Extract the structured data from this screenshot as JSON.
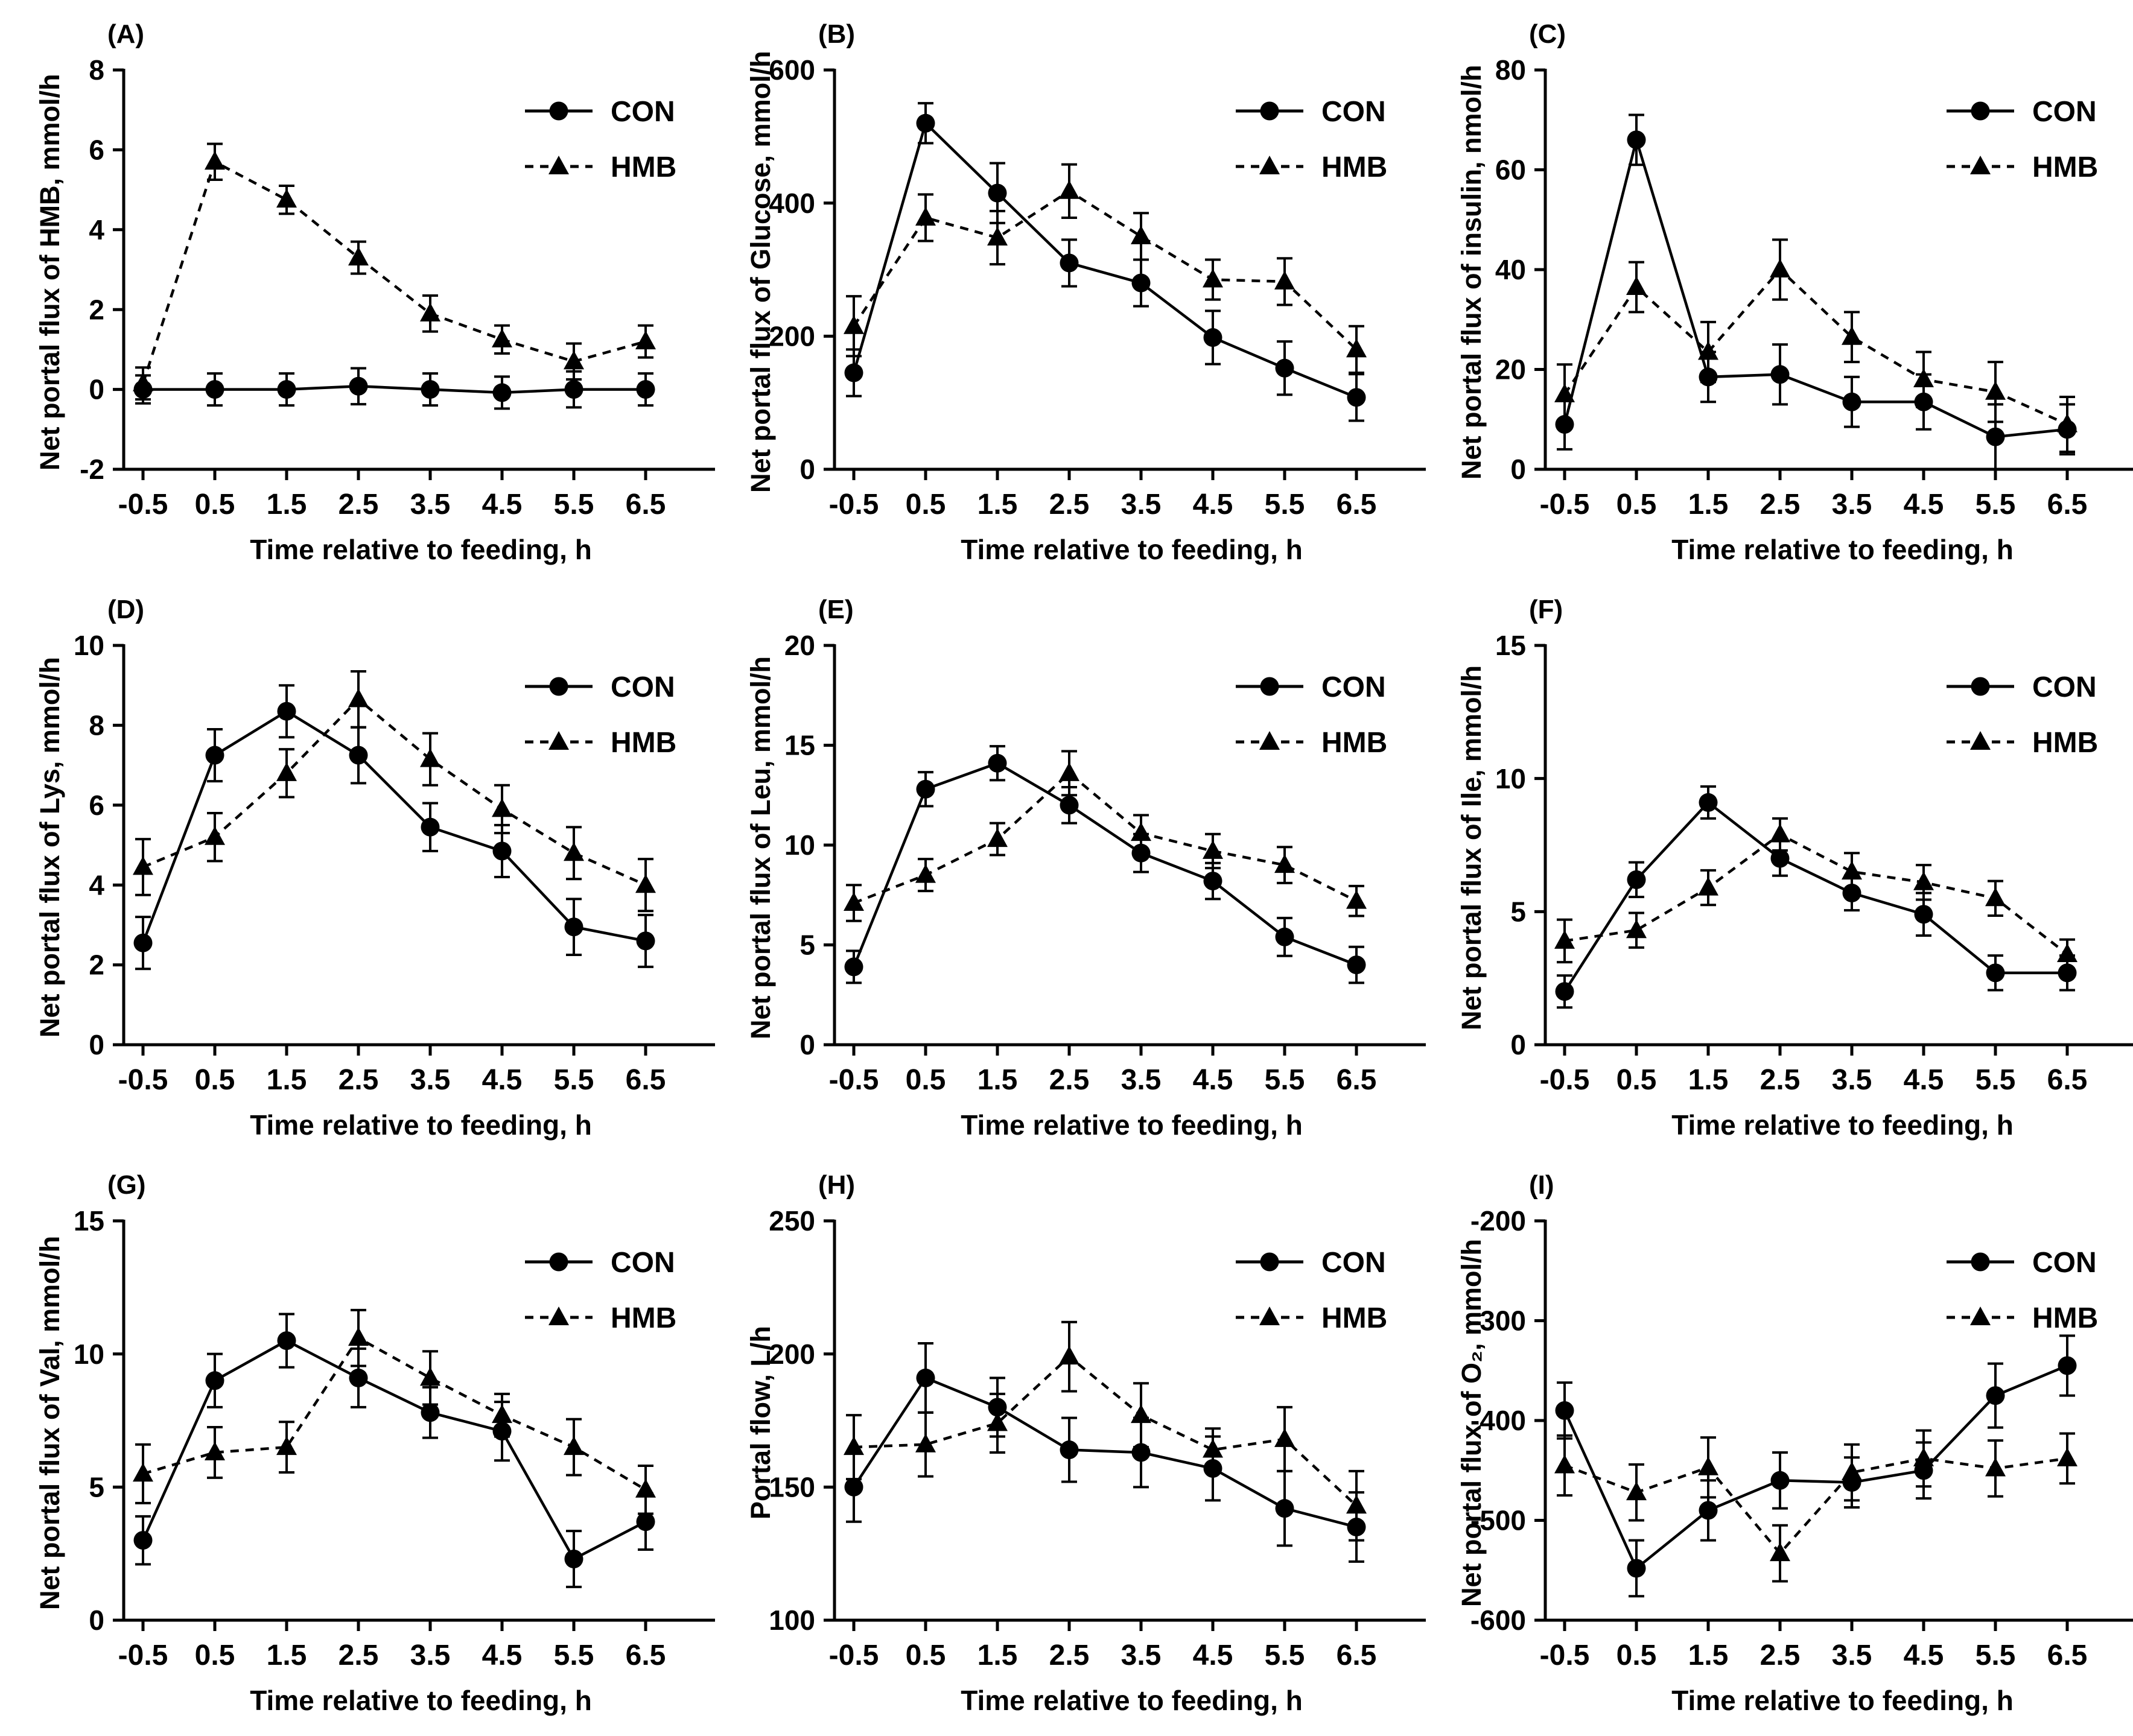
{
  "page": {
    "background": "#ffffff",
    "ink": "#000000"
  },
  "xlabel": "Time relative to feeding, h",
  "legend_labels": [
    "CON",
    "HMB"
  ],
  "chart_data": [
    {
      "type": "line",
      "panel_label": "(A)",
      "ylabel": "Net portal flux of HMB, mmol/h",
      "xlabel": "Time relative to feeding, h",
      "x": [
        -0.5,
        0.5,
        1.5,
        2.5,
        3.5,
        4.5,
        5.5,
        6.5
      ],
      "ylim": [
        -2,
        8
      ],
      "yticks": [
        -2,
        0,
        2,
        4,
        6,
        8
      ],
      "legend_position": "top-right",
      "grid": false,
      "series": [
        {
          "name": "CON",
          "marker": "circle",
          "line": "solid",
          "values": [
            0,
            0,
            0,
            0.08,
            0,
            -0.08,
            0,
            0
          ],
          "errors": [
            0.35,
            0.4,
            0.4,
            0.45,
            0.4,
            0.4,
            0.45,
            0.4
          ]
        },
        {
          "name": "HMB",
          "marker": "triangle",
          "line": "dashed",
          "values": [
            0.15,
            5.7,
            4.75,
            3.3,
            1.9,
            1.25,
            0.7,
            1.2
          ],
          "errors": [
            0.4,
            0.45,
            0.35,
            0.4,
            0.45,
            0.35,
            0.45,
            0.4
          ]
        }
      ]
    },
    {
      "type": "line",
      "panel_label": "(B)",
      "ylabel": "Net portal flux of Glucose, mmol/h",
      "xlabel": "Time relative to feeding, h",
      "x": [
        -0.5,
        0.5,
        1.5,
        2.5,
        3.5,
        4.5,
        5.5,
        6.5
      ],
      "ylim": [
        0,
        600
      ],
      "yticks": [
        0,
        200,
        400,
        600
      ],
      "legend_position": "top-right",
      "grid": false,
      "series": [
        {
          "name": "CON",
          "marker": "circle",
          "line": "solid",
          "values": [
            145,
            520,
            415,
            310,
            280,
            198,
            152,
            108
          ],
          "errors": [
            35,
            30,
            45,
            35,
            35,
            40,
            40,
            35
          ]
        },
        {
          "name": "HMB",
          "marker": "triangle",
          "line": "dashed",
          "values": [
            215,
            378,
            348,
            418,
            350,
            285,
            282,
            180
          ],
          "errors": [
            45,
            35,
            40,
            40,
            35,
            30,
            35,
            35
          ]
        }
      ]
    },
    {
      "type": "line",
      "panel_label": "(C)",
      "ylabel": "Net portal flux of insulin, nmol/h",
      "xlabel": "Time relative to feeding, h",
      "x": [
        -0.5,
        0.5,
        1.5,
        2.5,
        3.5,
        4.5,
        5.5,
        6.5
      ],
      "ylim": [
        0,
        80
      ],
      "yticks": [
        0,
        20,
        40,
        60,
        80
      ],
      "legend_position": "top-right",
      "grid": false,
      "series": [
        {
          "name": "CON",
          "marker": "circle",
          "line": "solid",
          "values": [
            9,
            66,
            18.5,
            19,
            13.5,
            13.5,
            6.5,
            8
          ],
          "errors": [
            5,
            5,
            5,
            6,
            5,
            5.5,
            6.5,
            5
          ]
        },
        {
          "name": "HMB",
          "marker": "triangle",
          "line": "dashed",
          "values": [
            15,
            36.5,
            23.5,
            40,
            26.5,
            18,
            15.5,
            9
          ],
          "errors": [
            6,
            5,
            6,
            6,
            5,
            5.5,
            6,
            5.5
          ]
        }
      ]
    },
    {
      "type": "line",
      "panel_label": "(D)",
      "ylabel": "Net portal flux of Lys, mmol/h",
      "xlabel": "Time relative to feeding, h",
      "x": [
        -0.5,
        0.5,
        1.5,
        2.5,
        3.5,
        4.5,
        5.5,
        6.5
      ],
      "ylim": [
        0,
        10
      ],
      "yticks": [
        0,
        2,
        4,
        6,
        8,
        10
      ],
      "legend_position": "top-right",
      "grid": false,
      "series": [
        {
          "name": "CON",
          "marker": "circle",
          "line": "solid",
          "values": [
            2.55,
            7.25,
            8.35,
            7.25,
            5.45,
            4.85,
            2.95,
            2.6
          ],
          "errors": [
            0.65,
            0.65,
            0.65,
            0.7,
            0.6,
            0.65,
            0.7,
            0.65
          ]
        },
        {
          "name": "HMB",
          "marker": "triangle",
          "line": "dashed",
          "values": [
            4.45,
            5.2,
            6.8,
            8.65,
            7.15,
            5.9,
            4.8,
            4.0
          ],
          "errors": [
            0.7,
            0.6,
            0.6,
            0.7,
            0.65,
            0.6,
            0.65,
            0.65
          ]
        }
      ]
    },
    {
      "type": "line",
      "panel_label": "(E)",
      "ylabel": "Net portal flux of Leu, mmol/h",
      "xlabel": "Time relative to feeding, h",
      "x": [
        -0.5,
        0.5,
        1.5,
        2.5,
        3.5,
        4.5,
        5.5,
        6.5
      ],
      "ylim": [
        0,
        20
      ],
      "yticks": [
        0,
        5,
        10,
        15,
        20
      ],
      "legend_position": "top-right",
      "grid": false,
      "series": [
        {
          "name": "CON",
          "marker": "circle",
          "line": "solid",
          "values": [
            3.9,
            12.8,
            14.1,
            12.0,
            9.6,
            8.2,
            5.4,
            4.0
          ],
          "errors": [
            0.8,
            0.85,
            0.85,
            0.9,
            0.95,
            0.9,
            0.95,
            0.9
          ]
        },
        {
          "name": "HMB",
          "marker": "triangle",
          "line": "dashed",
          "values": [
            7.1,
            8.5,
            10.3,
            13.6,
            10.6,
            9.7,
            9.0,
            7.2
          ],
          "errors": [
            0.9,
            0.8,
            0.8,
            1.1,
            0.9,
            0.85,
            0.9,
            0.75
          ]
        }
      ]
    },
    {
      "type": "line",
      "panel_label": "(F)",
      "ylabel": "Net portal flux of Ile, mmol/h",
      "xlabel": "Time relative to feeding, h",
      "x": [
        -0.5,
        0.5,
        1.5,
        2.5,
        3.5,
        4.5,
        5.5,
        6.5
      ],
      "ylim": [
        0,
        15
      ],
      "yticks": [
        0,
        5,
        10,
        15
      ],
      "legend_position": "top-right",
      "grid": false,
      "series": [
        {
          "name": "CON",
          "marker": "circle",
          "line": "solid",
          "values": [
            2.0,
            6.2,
            9.1,
            7.0,
            5.7,
            4.9,
            2.7,
            2.7
          ],
          "errors": [
            0.6,
            0.65,
            0.6,
            0.65,
            0.65,
            0.8,
            0.65,
            0.65
          ]
        },
        {
          "name": "HMB",
          "marker": "triangle",
          "line": "dashed",
          "values": [
            3.9,
            4.3,
            5.9,
            7.9,
            6.5,
            6.1,
            5.5,
            3.4
          ],
          "errors": [
            0.8,
            0.65,
            0.65,
            0.6,
            0.7,
            0.65,
            0.65,
            0.55
          ]
        }
      ]
    },
    {
      "type": "line",
      "panel_label": "(G)",
      "ylabel": "Net portal flux of Val, mmol/h",
      "xlabel": "Time relative to feeding, h",
      "x": [
        -0.5,
        0.5,
        1.5,
        2.5,
        3.5,
        4.5,
        5.5,
        6.5
      ],
      "ylim": [
        0,
        15
      ],
      "yticks": [
        0,
        5,
        10,
        15
      ],
      "legend_position": "top-right",
      "grid": false,
      "series": [
        {
          "name": "CON",
          "marker": "circle",
          "line": "solid",
          "values": [
            3.0,
            9.0,
            10.5,
            9.1,
            7.8,
            7.1,
            2.3,
            3.7
          ],
          "errors": [
            0.9,
            1.0,
            1.0,
            1.1,
            0.95,
            1.1,
            1.05,
            1.05
          ]
        },
        {
          "name": "HMB",
          "marker": "triangle",
          "line": "dashed",
          "values": [
            5.5,
            6.3,
            6.5,
            10.6,
            9.1,
            7.7,
            6.5,
            4.9
          ],
          "errors": [
            1.1,
            0.95,
            0.95,
            1.05,
            1.0,
            0.8,
            1.05,
            0.9
          ]
        }
      ]
    },
    {
      "type": "line",
      "panel_label": "(H)",
      "ylabel": "Portal flow, L/h",
      "xlabel": "Time relative to feeding, h",
      "x": [
        -0.5,
        0.5,
        1.5,
        2.5,
        3.5,
        4.5,
        5.5,
        6.5
      ],
      "ylim": [
        100,
        250
      ],
      "yticks": [
        100,
        150,
        200,
        250
      ],
      "legend_position": "top-right",
      "grid": false,
      "series": [
        {
          "name": "CON",
          "marker": "circle",
          "line": "solid",
          "values": [
            150,
            191,
            180,
            164,
            163,
            157,
            142,
            135
          ],
          "errors": [
            13,
            13,
            11,
            12,
            13,
            12,
            14,
            13
          ]
        },
        {
          "name": "HMB",
          "marker": "triangle",
          "line": "dashed",
          "values": [
            165,
            166,
            174,
            199,
            177,
            164,
            168,
            143
          ],
          "errors": [
            12,
            12,
            11,
            13,
            12,
            8,
            12,
            13
          ]
        }
      ]
    },
    {
      "type": "line",
      "panel_label": "(I)",
      "ylabel": "Net portal flux of O₂, mmol/h",
      "xlabel": "Time relative to feeding, h",
      "x": [
        -0.5,
        0.5,
        1.5,
        2.5,
        3.5,
        4.5,
        5.5,
        6.5
      ],
      "ylim": [
        -600,
        -200
      ],
      "yticks": [
        -600,
        -500,
        -400,
        -300,
        -200
      ],
      "legend_position": "top-right",
      "grid": false,
      "series": [
        {
          "name": "CON",
          "marker": "circle",
          "line": "solid",
          "values": [
            -390,
            -548,
            -490,
            -460,
            -462,
            -450,
            -375,
            -345
          ],
          "errors": [
            28,
            28,
            30,
            28,
            25,
            28,
            32,
            30
          ]
        },
        {
          "name": "HMB",
          "marker": "triangle",
          "line": "dashed",
          "values": [
            -445,
            -472,
            -447,
            -533,
            -452,
            -438,
            -448,
            -438
          ],
          "errors": [
            30,
            28,
            30,
            28,
            28,
            28,
            28,
            25
          ]
        }
      ]
    }
  ]
}
